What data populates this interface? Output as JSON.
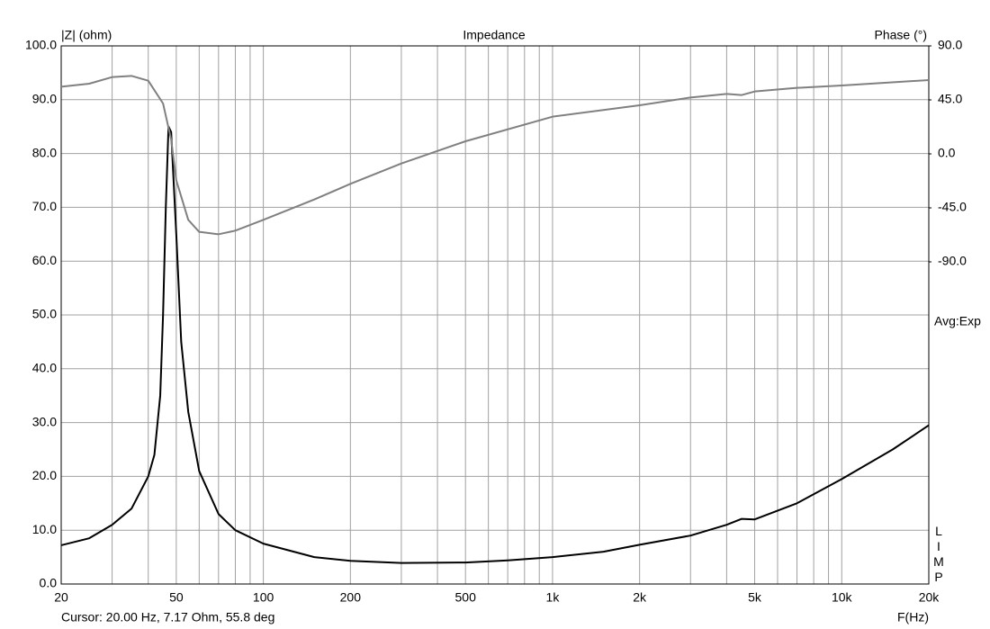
{
  "chart_data": {
    "type": "line",
    "title": "Impedance",
    "y_label": "|Z| (ohm)",
    "y2_label": "Phase (°)",
    "x_label": "F(Hz)",
    "annotations": [
      "Avg:Exp",
      "LIMP",
      "Cursor: 20.00 Hz, 7.17 Ohm, 55.8 deg"
    ],
    "xscale": "log",
    "grid": true,
    "xlim": [
      20,
      20000
    ],
    "xticks": [
      20,
      50,
      100,
      200,
      500,
      {
        "value": 1000,
        "label": "1k"
      },
      {
        "value": 2000,
        "label": "2k"
      },
      {
        "value": 5000,
        "label": "5k"
      },
      {
        "value": 10000,
        "label": "10k"
      },
      {
        "value": 20000,
        "label": "20k"
      }
    ],
    "xminor": [
      30,
      40,
      60,
      70,
      80,
      90,
      300,
      400,
      600,
      700,
      800,
      900,
      3000,
      4000,
      6000,
      7000,
      8000,
      9000
    ],
    "ylim": [
      0,
      100
    ],
    "yticks": [
      {
        "value": 0,
        "label": "0.0"
      },
      {
        "value": 10,
        "label": "10.0"
      },
      {
        "value": 20,
        "label": "20.0"
      },
      {
        "value": 30,
        "label": "30.0"
      },
      {
        "value": 40,
        "label": "40.0"
      },
      {
        "value": 50,
        "label": "50.0"
      },
      {
        "value": 60,
        "label": "60.0"
      },
      {
        "value": 70,
        "label": "70.0"
      },
      {
        "value": 80,
        "label": "80.0"
      },
      {
        "value": 90,
        "label": "90.0"
      },
      {
        "value": 100,
        "label": "100.0"
      }
    ],
    "y2lim": [
      -358.5,
      90
    ],
    "y2ticks": [
      {
        "value": 90,
        "label": "90.0"
      },
      {
        "value": 45,
        "label": "45.0"
      },
      {
        "value": 0,
        "label": "0.0"
      },
      {
        "value": -45,
        "label": "-45.0"
      },
      {
        "value": -90,
        "label": "-90.0"
      }
    ],
    "series": [
      {
        "color": "#000000",
        "x": [
          20,
          25,
          30,
          35,
          40,
          42,
          44,
          45,
          46,
          47,
          48,
          50,
          52,
          55,
          60,
          70,
          80,
          100,
          150,
          200,
          300,
          500,
          700,
          1000,
          1500,
          2000,
          3000,
          4000,
          4500,
          5000,
          7000,
          10000,
          15000,
          20000
        ],
        "values": [
          7.2,
          8.5,
          11,
          14,
          20,
          24,
          35,
          50,
          70,
          85,
          84,
          65,
          45,
          32,
          21,
          13,
          10,
          7.5,
          5,
          4.3,
          3.9,
          4.0,
          4.4,
          5.0,
          6.0,
          7.3,
          9.0,
          11,
          12.1,
          12.0,
          15,
          19.5,
          25,
          29.5
        ]
      },
      {
        "color": "#808080",
        "axis": "y2",
        "x": [
          20,
          25,
          30,
          35,
          40,
          45,
          48,
          50,
          55,
          60,
          70,
          80,
          100,
          150,
          200,
          300,
          500,
          1000,
          2000,
          3000,
          4000,
          4500,
          5000,
          7000,
          10000,
          20000
        ],
        "values": [
          56,
          58.5,
          64,
          65,
          61,
          42,
          12,
          -22,
          -55,
          -65,
          -67,
          -64,
          -55,
          -38,
          -25,
          -8,
          10.5,
          31,
          40.5,
          47,
          50,
          49,
          52,
          55,
          57,
          61.5
        ]
      }
    ]
  }
}
